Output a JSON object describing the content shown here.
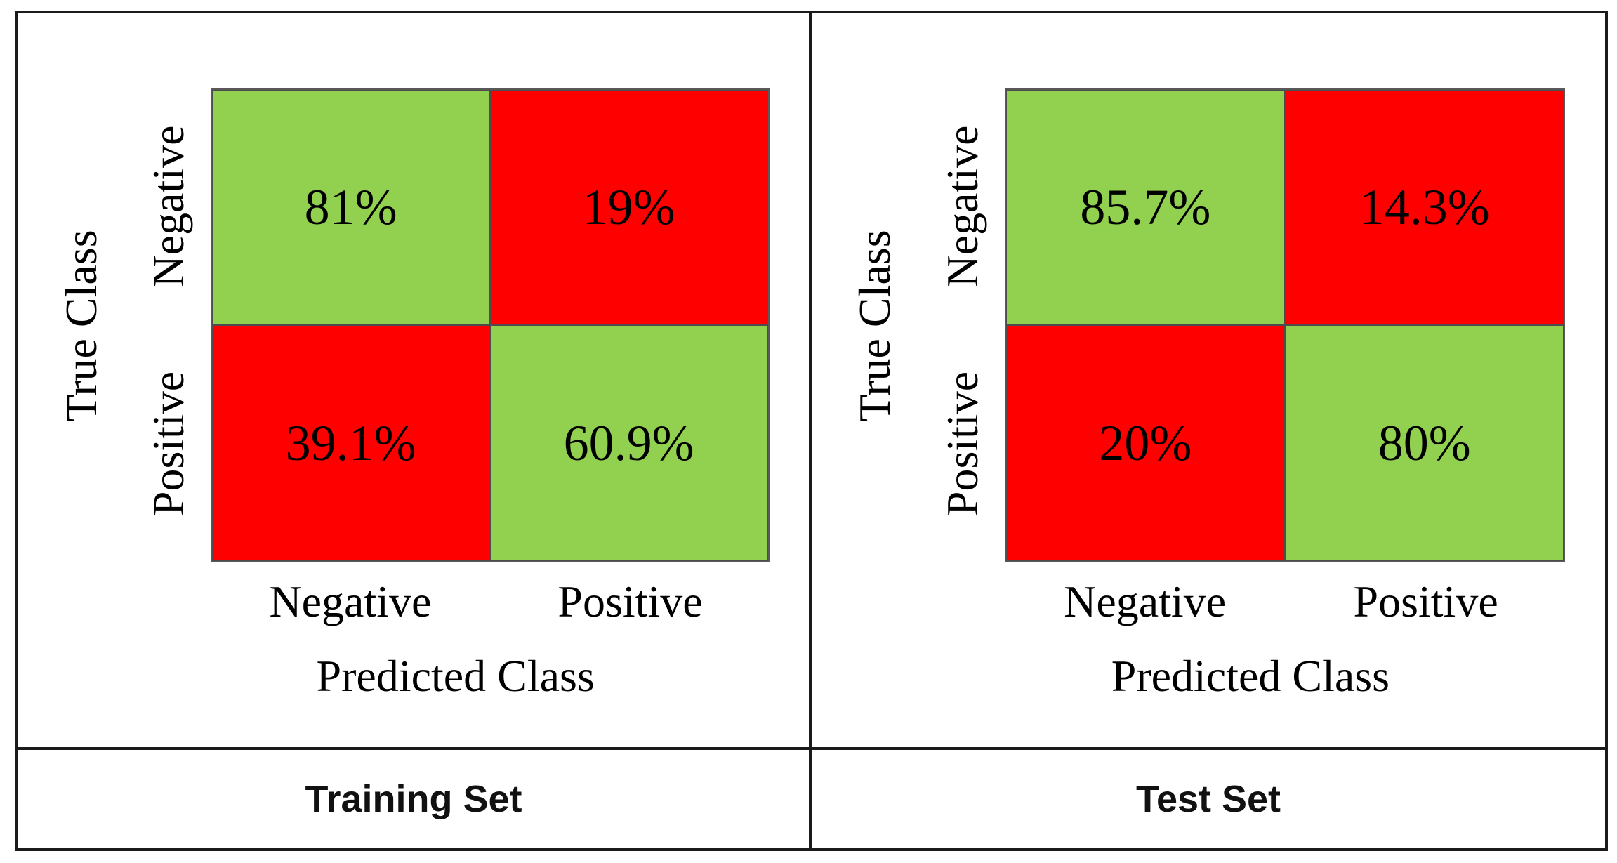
{
  "figure": {
    "background": "#FFFFFF",
    "frame_border_color": "#1B1B1B",
    "grid_line_color": "#595959",
    "green_hex": "#92D050",
    "red_hex": "#FE0000"
  },
  "panels": [
    {
      "caption": "Training Set",
      "y_axis_title": "True Class",
      "x_axis_title": "Predicted Class",
      "row_labels": [
        "Negative",
        "Positive"
      ],
      "col_labels": [
        "Negative",
        "Positive"
      ],
      "cells": [
        {
          "value": "81%",
          "semantic": "true-negative",
          "color_hex": "#92D050"
        },
        {
          "value": "19%",
          "semantic": "false-positive",
          "color_hex": "#FE0000"
        },
        {
          "value": "39.1%",
          "semantic": "false-negative",
          "color_hex": "#FE0000"
        },
        {
          "value": "60.9%",
          "semantic": "true-positive",
          "color_hex": "#92D050"
        }
      ]
    },
    {
      "caption": "Test Set",
      "y_axis_title": "True Class",
      "x_axis_title": "Predicted Class",
      "row_labels": [
        "Negative",
        "Positive"
      ],
      "col_labels": [
        "Negative",
        "Positive"
      ],
      "cells": [
        {
          "value": "85.7%",
          "semantic": "true-negative",
          "color_hex": "#92D050"
        },
        {
          "value": "14.3%",
          "semantic": "false-positive",
          "color_hex": "#FE0000"
        },
        {
          "value": "20%",
          "semantic": "false-negative",
          "color_hex": "#FE0000"
        },
        {
          "value": "80%",
          "semantic": "true-positive",
          "color_hex": "#92D050"
        }
      ]
    }
  ],
  "chart_data": [
    {
      "type": "heatmap",
      "title": "Training Set",
      "xlabel": "Predicted Class",
      "ylabel": "True Class",
      "x_categories": [
        "Negative",
        "Positive"
      ],
      "y_categories": [
        "Negative",
        "Positive"
      ],
      "values_percent": [
        [
          81,
          19
        ],
        [
          39.1,
          60.9
        ]
      ],
      "cell_colors": [
        [
          "#92D050",
          "#FE0000"
        ],
        [
          "#FE0000",
          "#92D050"
        ]
      ],
      "legend": "none",
      "grid": "on"
    },
    {
      "type": "heatmap",
      "title": "Test Set",
      "xlabel": "Predicted Class",
      "ylabel": "True Class",
      "x_categories": [
        "Negative",
        "Positive"
      ],
      "y_categories": [
        "Negative",
        "Positive"
      ],
      "values_percent": [
        [
          85.7,
          14.3
        ],
        [
          20,
          80
        ]
      ],
      "cell_colors": [
        [
          "#92D050",
          "#FE0000"
        ],
        [
          "#FE0000",
          "#92D050"
        ]
      ],
      "legend": "none",
      "grid": "on"
    }
  ]
}
